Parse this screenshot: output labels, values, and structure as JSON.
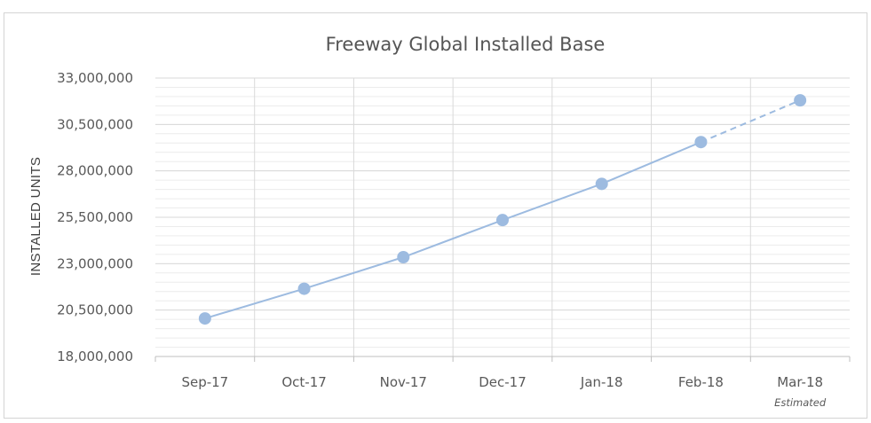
{
  "chart_data": {
    "type": "line",
    "title": "Freeway Global Installed Base",
    "xlabel": "",
    "ylabel": "INSTALLED UNITS",
    "categories": [
      "Sep-17",
      "Oct-17",
      "Nov-17",
      "Dec-17",
      "Jan-18",
      "Feb-18",
      "Mar-18"
    ],
    "values": [
      20050000,
      21650000,
      23350000,
      25350000,
      27300000,
      29550000,
      31800000
    ],
    "estimated_from_index": 5,
    "annotations": [
      {
        "category": "Mar-18",
        "text": "Estimated"
      }
    ],
    "ylim": [
      18000000,
      33000000
    ],
    "yticks": [
      "18,000,000",
      "20,500,000",
      "23,000,000",
      "25,500,000",
      "28,000,000",
      "30,500,000",
      "33,000,000"
    ],
    "ytick_values": [
      18000000,
      20500000,
      23000000,
      25500000,
      28000000,
      30500000,
      33000000
    ],
    "grid": true,
    "legend": "none",
    "color": "#9dbbe0"
  }
}
